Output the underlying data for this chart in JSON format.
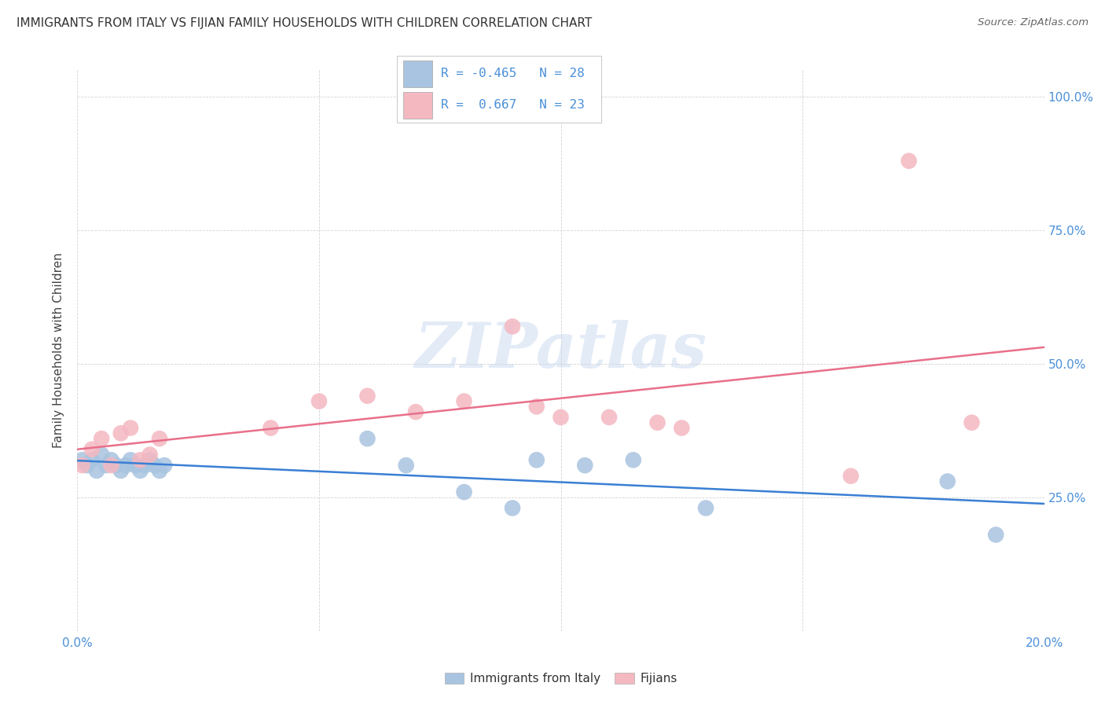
{
  "title": "IMMIGRANTS FROM ITALY VS FIJIAN FAMILY HOUSEHOLDS WITH CHILDREN CORRELATION CHART",
  "source": "Source: ZipAtlas.com",
  "xlabel_italy": "Immigrants from Italy",
  "xlabel_fijians": "Fijians",
  "ylabel": "Family Households with Children",
  "xlim": [
    0.0,
    0.2
  ],
  "ylim": [
    0.0,
    1.05
  ],
  "xticks": [
    0.0,
    0.05,
    0.1,
    0.15,
    0.2
  ],
  "yticks": [
    0.0,
    0.25,
    0.5,
    0.75,
    1.0
  ],
  "r_italy": -0.465,
  "n_italy": 28,
  "r_fijians": 0.667,
  "n_fijians": 23,
  "color_italy": "#a8c4e0",
  "color_fijians": "#f4b8c1",
  "line_color_italy": "#3a7fd4",
  "line_color_fijians": "#e8708a",
  "tick_color": "#4a90d9",
  "italy_x": [
    0.001,
    0.002,
    0.003,
    0.004,
    0.005,
    0.006,
    0.007,
    0.008,
    0.009,
    0.01,
    0.011,
    0.012,
    0.013,
    0.014,
    0.015,
    0.016,
    0.017,
    0.018,
    0.06,
    0.068,
    0.08,
    0.09,
    0.095,
    0.105,
    0.115,
    0.13,
    0.18,
    0.19
  ],
  "italy_y": [
    0.32,
    0.31,
    0.32,
    0.3,
    0.33,
    0.31,
    0.32,
    0.31,
    0.3,
    0.31,
    0.32,
    0.31,
    0.3,
    0.31,
    0.32,
    0.31,
    0.3,
    0.31,
    0.36,
    0.31,
    0.26,
    0.23,
    0.32,
    0.31,
    0.32,
    0.23,
    0.28,
    0.18
  ],
  "fijians_x": [
    0.001,
    0.003,
    0.005,
    0.007,
    0.009,
    0.011,
    0.013,
    0.015,
    0.017,
    0.04,
    0.05,
    0.06,
    0.07,
    0.08,
    0.09,
    0.095,
    0.1,
    0.11,
    0.12,
    0.125,
    0.16,
    0.172,
    0.185
  ],
  "fijians_y": [
    0.31,
    0.34,
    0.36,
    0.31,
    0.37,
    0.38,
    0.32,
    0.33,
    0.36,
    0.38,
    0.43,
    0.44,
    0.41,
    0.43,
    0.57,
    0.42,
    0.4,
    0.4,
    0.39,
    0.38,
    0.29,
    0.88,
    0.39
  ],
  "watermark": "ZIPatlas",
  "background_color": "#ffffff",
  "grid_color": "#c8c8c8"
}
